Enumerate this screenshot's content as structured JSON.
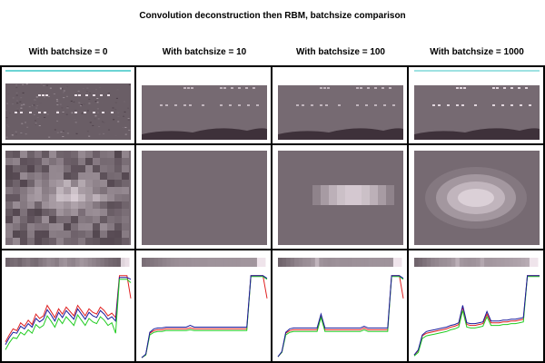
{
  "figure": {
    "title": "Convolution deconstruction then RBM, batchsize comparison",
    "columns": [
      {
        "title": "With batchsize = 0"
      },
      {
        "title": "With batchsize = 10"
      },
      {
        "title": "With batchsize = 100"
      },
      {
        "title": "With batchsize = 1000"
      }
    ],
    "colors": {
      "background": "#ffffff",
      "border": "#000000",
      "image_base": "#6e5a67",
      "image_dark": "#2a1d26",
      "image_light": "#f3e8ef",
      "cyan_line": "#3cc6c6",
      "red": "#e02020",
      "green": "#22cc22",
      "blue": "#1a1a9c",
      "yellow": "#c8c820"
    }
  },
  "chart_data": {
    "type": "line",
    "panels": [
      {
        "batchsize": 0,
        "profile_strip": [
          0.35,
          0.38,
          0.4,
          0.36,
          0.42,
          0.45,
          0.4,
          0.38,
          0.44,
          0.48,
          0.52,
          0.5,
          0.47,
          0.55,
          0.58,
          0.52,
          0.5,
          0.55,
          0.6,
          0.57,
          0.53,
          0.5,
          0.47,
          0.44,
          0.4,
          0.37,
          0.35,
          0.33,
          0.9,
          0.95
        ],
        "series": [
          {
            "color": "red",
            "values": [
              0.2,
              0.28,
              0.35,
              0.33,
              0.42,
              0.38,
              0.45,
              0.4,
              0.52,
              0.47,
              0.5,
              0.62,
              0.55,
              0.48,
              0.58,
              0.52,
              0.6,
              0.55,
              0.5,
              0.62,
              0.56,
              0.5,
              0.58,
              0.54,
              0.52,
              0.6,
              0.56,
              0.5,
              0.53,
              0.48,
              0.96,
              0.96,
              0.96,
              0.7
            ]
          },
          {
            "color": "blue",
            "values": [
              0.17,
              0.25,
              0.31,
              0.3,
              0.38,
              0.35,
              0.41,
              0.37,
              0.47,
              0.43,
              0.46,
              0.57,
              0.51,
              0.44,
              0.54,
              0.48,
              0.56,
              0.51,
              0.46,
              0.58,
              0.52,
              0.46,
              0.54,
              0.5,
              0.48,
              0.56,
              0.52,
              0.46,
              0.49,
              0.44,
              0.94,
              0.94,
              0.94,
              0.92
            ]
          },
          {
            "color": "green",
            "values": [
              0.11,
              0.19,
              0.25,
              0.24,
              0.31,
              0.28,
              0.34,
              0.3,
              0.4,
              0.36,
              0.39,
              0.5,
              0.44,
              0.37,
              0.47,
              0.41,
              0.49,
              0.44,
              0.39,
              0.51,
              0.45,
              0.39,
              0.47,
              0.43,
              0.41,
              0.49,
              0.45,
              0.39,
              0.42,
              0.3,
              0.92,
              0.92,
              0.92,
              0.88
            ]
          }
        ]
      },
      {
        "batchsize": 10,
        "profile_strip": [
          0.4,
          0.42,
          0.44,
          0.46,
          0.48,
          0.5,
          0.52,
          0.54,
          0.55,
          0.56,
          0.56,
          0.56,
          0.57,
          0.57,
          0.57,
          0.57,
          0.58,
          0.58,
          0.58,
          0.58,
          0.58,
          0.58,
          0.58,
          0.58,
          0.59,
          0.59,
          0.59,
          0.59,
          0.98,
          0.98
        ],
        "series": [
          {
            "color": "red",
            "values": [
              0.02,
              0.05,
              0.3,
              0.33,
              0.34,
              0.34,
              0.35,
              0.35,
              0.35,
              0.35,
              0.35,
              0.35,
              0.36,
              0.35,
              0.35,
              0.35,
              0.35,
              0.35,
              0.35,
              0.35,
              0.35,
              0.35,
              0.35,
              0.35,
              0.35,
              0.35,
              0.35,
              0.96,
              0.96,
              0.96,
              0.96,
              0.7
            ]
          },
          {
            "color": "green",
            "values": [
              0.02,
              0.05,
              0.28,
              0.31,
              0.32,
              0.32,
              0.33,
              0.33,
              0.33,
              0.33,
              0.33,
              0.33,
              0.34,
              0.33,
              0.33,
              0.33,
              0.33,
              0.33,
              0.33,
              0.33,
              0.33,
              0.33,
              0.33,
              0.33,
              0.33,
              0.33,
              0.33,
              0.95,
              0.95,
              0.95,
              0.95,
              0.92
            ]
          },
          {
            "color": "blue",
            "values": [
              0.02,
              0.06,
              0.31,
              0.35,
              0.36,
              0.36,
              0.37,
              0.37,
              0.37,
              0.37,
              0.37,
              0.37,
              0.39,
              0.37,
              0.37,
              0.37,
              0.37,
              0.37,
              0.37,
              0.37,
              0.37,
              0.37,
              0.37,
              0.37,
              0.37,
              0.37,
              0.37,
              0.96,
              0.96,
              0.96,
              0.96,
              0.93
            ]
          }
        ]
      },
      {
        "batchsize": 100,
        "profile_strip": [
          0.35,
          0.38,
          0.42,
          0.46,
          0.5,
          0.52,
          0.55,
          0.56,
          0.6,
          0.75,
          0.58,
          0.56,
          0.55,
          0.56,
          0.57,
          0.56,
          0.56,
          0.56,
          0.57,
          0.57,
          0.57,
          0.57,
          0.58,
          0.58,
          0.58,
          0.58,
          0.58,
          0.58,
          0.98,
          0.98
        ],
        "series": [
          {
            "color": "red",
            "values": [
              0.03,
              0.08,
              0.3,
              0.33,
              0.34,
              0.34,
              0.34,
              0.34,
              0.34,
              0.34,
              0.34,
              0.5,
              0.34,
              0.34,
              0.34,
              0.34,
              0.34,
              0.34,
              0.34,
              0.34,
              0.34,
              0.34,
              0.36,
              0.34,
              0.34,
              0.34,
              0.34,
              0.34,
              0.34,
              0.96,
              0.96,
              0.96,
              0.7
            ]
          },
          {
            "color": "green",
            "values": [
              0.03,
              0.08,
              0.28,
              0.31,
              0.32,
              0.32,
              0.32,
              0.32,
              0.32,
              0.32,
              0.32,
              0.48,
              0.32,
              0.32,
              0.32,
              0.32,
              0.32,
              0.32,
              0.32,
              0.32,
              0.32,
              0.32,
              0.34,
              0.32,
              0.32,
              0.32,
              0.32,
              0.32,
              0.32,
              0.95,
              0.95,
              0.95,
              0.92
            ]
          },
          {
            "color": "blue",
            "values": [
              0.03,
              0.09,
              0.31,
              0.35,
              0.36,
              0.36,
              0.36,
              0.36,
              0.36,
              0.36,
              0.36,
              0.52,
              0.36,
              0.36,
              0.36,
              0.36,
              0.36,
              0.36,
              0.36,
              0.36,
              0.36,
              0.36,
              0.38,
              0.36,
              0.36,
              0.36,
              0.36,
              0.36,
              0.36,
              0.96,
              0.96,
              0.96,
              0.93
            ]
          }
        ]
      },
      {
        "batchsize": 1000,
        "profile_strip": [
          0.35,
          0.38,
          0.42,
          0.46,
          0.5,
          0.52,
          0.55,
          0.56,
          0.58,
          0.62,
          0.72,
          0.6,
          0.58,
          0.57,
          0.58,
          0.6,
          0.68,
          0.6,
          0.6,
          0.61,
          0.62,
          0.62,
          0.63,
          0.64,
          0.65,
          0.66,
          0.68,
          0.7,
          0.98,
          0.98
        ],
        "series": [
          {
            "color": "red",
            "values": [
              0.05,
              0.1,
              0.27,
              0.3,
              0.31,
              0.32,
              0.33,
              0.34,
              0.35,
              0.37,
              0.38,
              0.4,
              0.6,
              0.4,
              0.39,
              0.39,
              0.4,
              0.41,
              0.52,
              0.42,
              0.42,
              0.42,
              0.43,
              0.43,
              0.44,
              0.44,
              0.45,
              0.46,
              0.96,
              0.96,
              0.96,
              0.96
            ]
          },
          {
            "color": "green",
            "values": [
              0.04,
              0.08,
              0.24,
              0.27,
              0.28,
              0.29,
              0.3,
              0.31,
              0.32,
              0.34,
              0.35,
              0.37,
              0.56,
              0.37,
              0.36,
              0.36,
              0.37,
              0.38,
              0.49,
              0.39,
              0.39,
              0.39,
              0.4,
              0.4,
              0.41,
              0.41,
              0.42,
              0.43,
              0.95,
              0.95,
              0.95,
              0.95
            ]
          },
          {
            "color": "blue",
            "values": [
              0.05,
              0.11,
              0.28,
              0.32,
              0.33,
              0.34,
              0.35,
              0.36,
              0.37,
              0.39,
              0.4,
              0.42,
              0.62,
              0.42,
              0.41,
              0.41,
              0.42,
              0.43,
              0.55,
              0.44,
              0.44,
              0.44,
              0.45,
              0.45,
              0.46,
              0.46,
              0.47,
              0.48,
              0.96,
              0.96,
              0.96,
              0.96
            ]
          }
        ]
      }
    ]
  }
}
